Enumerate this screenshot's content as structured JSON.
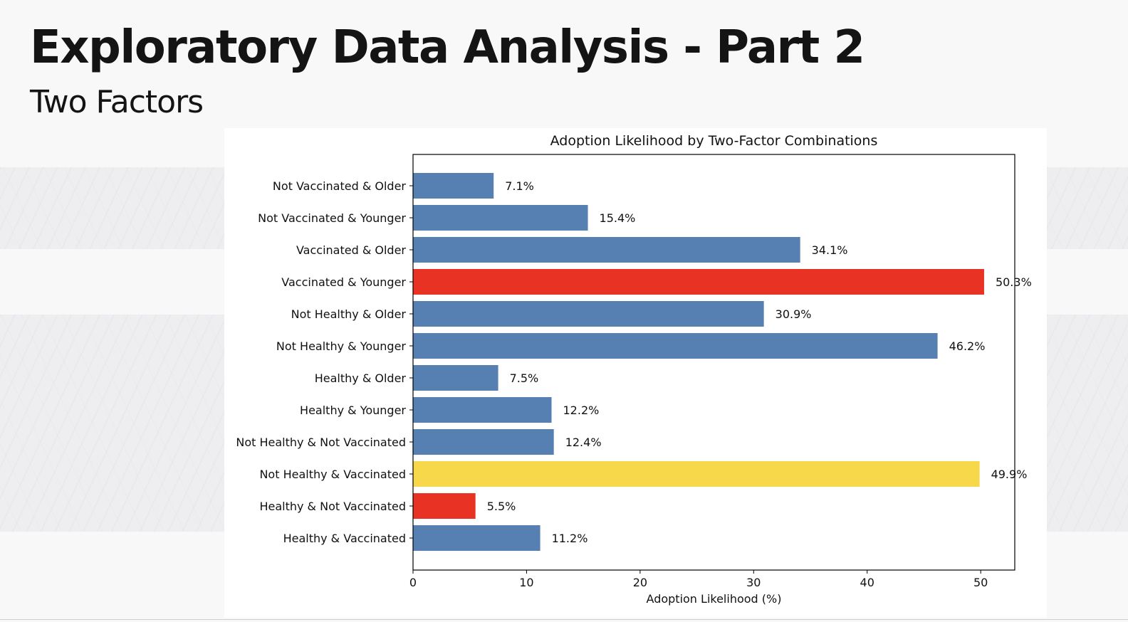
{
  "slide": {
    "title": "Exploratory Data Analysis - Part 2",
    "subtitle": "Two Factors"
  },
  "chart_data": {
    "type": "bar",
    "orientation": "horizontal",
    "title": "Adoption Likelihood by Two-Factor Combinations",
    "xlabel": "Adoption Likelihood (%)",
    "ylabel": "",
    "xlim": [
      0,
      53
    ],
    "x_ticks": [
      0,
      10,
      20,
      30,
      40,
      50
    ],
    "grid": false,
    "categories": [
      "Not Vaccinated & Older",
      "Not Vaccinated & Younger",
      "Vaccinated & Older",
      "Vaccinated & Younger",
      "Not Healthy & Older",
      "Not Healthy & Younger",
      "Healthy & Older",
      "Healthy & Younger",
      "Not Healthy & Not Vaccinated",
      "Not Healthy & Vaccinated",
      "Healthy & Not Vaccinated",
      "Healthy & Vaccinated"
    ],
    "values": [
      7.1,
      15.4,
      34.1,
      50.3,
      30.9,
      46.2,
      7.5,
      12.2,
      12.4,
      49.9,
      5.5,
      11.2
    ],
    "data_labels": [
      "7.1%",
      "15.4%",
      "34.1%",
      "50.3%",
      "30.9%",
      "46.2%",
      "7.5%",
      "12.2%",
      "12.4%",
      "49.9%",
      "5.5%",
      "11.2%"
    ],
    "bar_colors": [
      "#5580b1",
      "#5580b1",
      "#5580b1",
      "#e83223",
      "#5580b1",
      "#5580b1",
      "#5580b1",
      "#5580b1",
      "#5580b1",
      "#f8d84b",
      "#e83223",
      "#5580b1"
    ]
  }
}
